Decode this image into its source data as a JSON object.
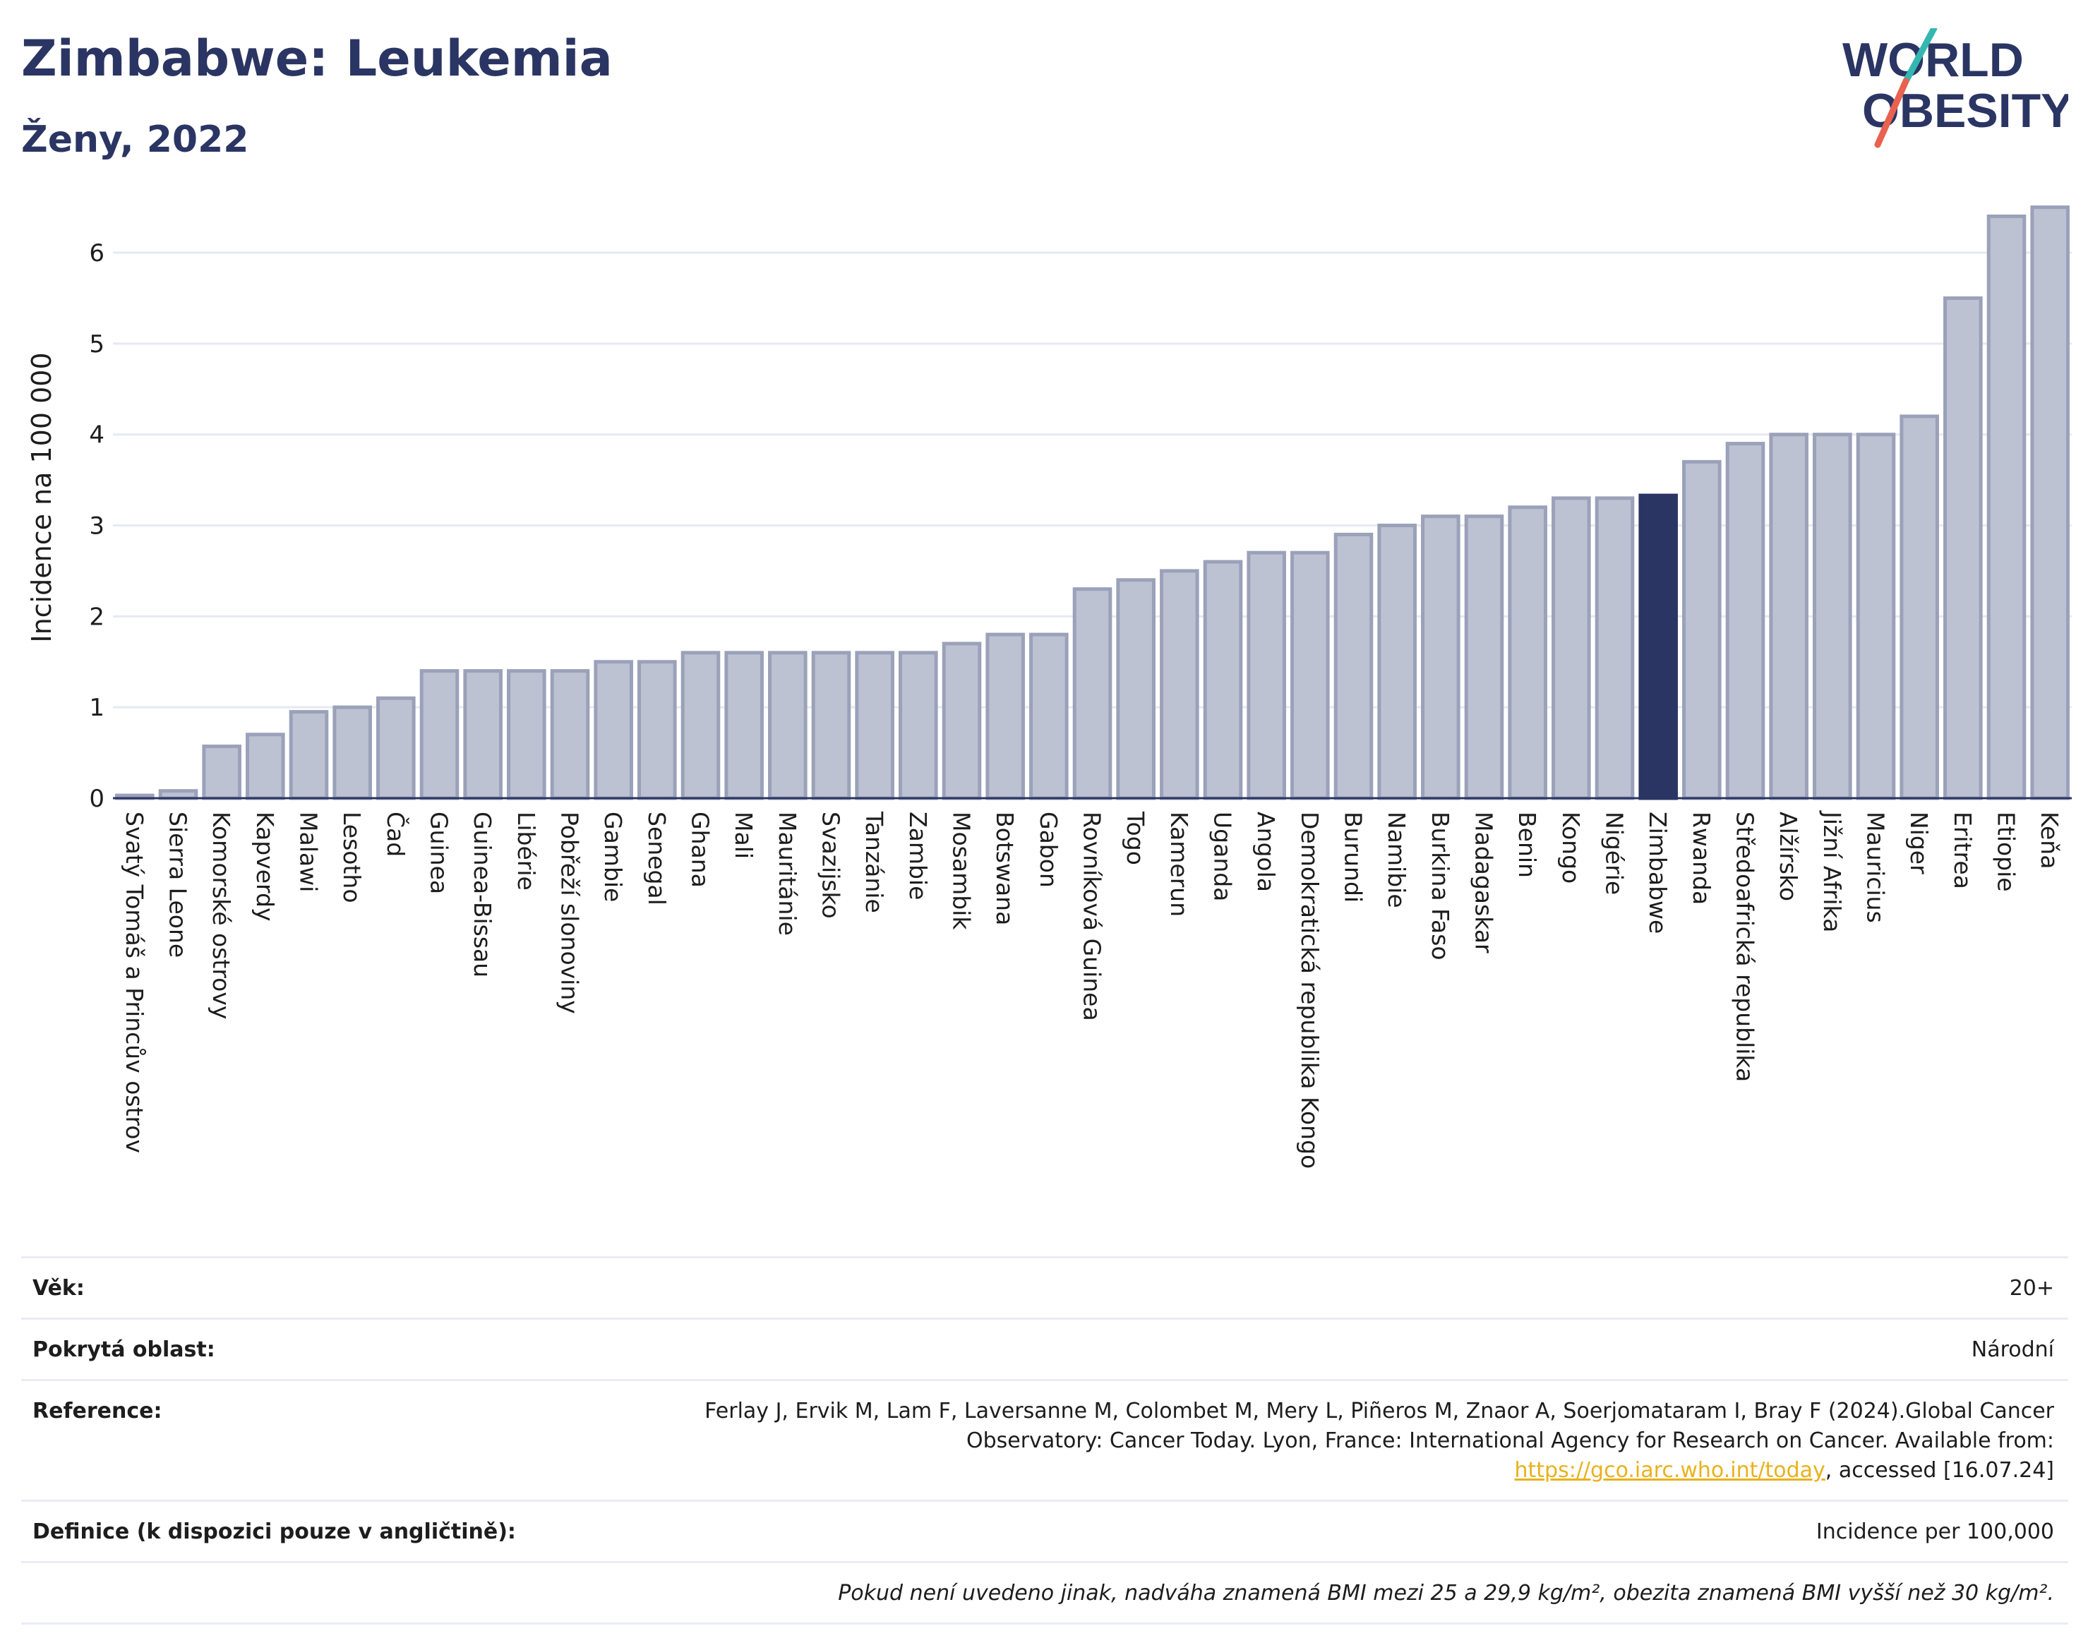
{
  "header": {
    "title": "Zimbabwe: Leukemia",
    "subtitle": "Ženy, 2022"
  },
  "logo": {
    "line1": "WORLD",
    "line2": "OBESITY",
    "colors": {
      "navy": "#2a3563",
      "teal": "#34b7b0",
      "coral": "#e8624f"
    }
  },
  "chart_data": {
    "type": "bar",
    "ylabel": "Incidence na 100 000",
    "ylim": [
      0,
      6.8
    ],
    "yticks": [
      0,
      1,
      2,
      3,
      4,
      5,
      6
    ],
    "grid": true,
    "highlight": "Zimbabwe",
    "colors": {
      "bar": "#bdc2d3",
      "bar_edge": "#9aa1b9",
      "highlight": "#2a3563"
    },
    "categories": [
      "Svatý Tomáš a Princův ostrov",
      "Sierra Leone",
      "Komorské ostrovy",
      "Kapverdy",
      "Malawi",
      "Lesotho",
      "Čad",
      "Guinea",
      "Guinea-Bissau",
      "Libérie",
      "Pobřeží slonoviny",
      "Gambie",
      "Senegal",
      "Ghana",
      "Mali",
      "Mauritánie",
      "Svazijsko",
      "Tanzánie",
      "Zambie",
      "Mosambik",
      "Botswana",
      "Gabon",
      "Rovníková Guinea",
      "Togo",
      "Kamerun",
      "Uganda",
      "Angola",
      "Demokratická republika Kongo",
      "Burundi",
      "Namibie",
      "Burkina Faso",
      "Madagaskar",
      "Benin",
      "Kongo",
      "Nigérie",
      "Zimbabwe",
      "Rwanda",
      "Středoafrická republika",
      "Alžírsko",
      "Jižní Afrika",
      "Mauricius",
      "Niger",
      "Eritrea",
      "Etiopie",
      "Keňa"
    ],
    "values": [
      0.03,
      0.08,
      0.57,
      0.7,
      0.95,
      1.0,
      1.1,
      1.4,
      1.4,
      1.4,
      1.4,
      1.5,
      1.5,
      1.6,
      1.6,
      1.6,
      1.6,
      1.6,
      1.6,
      1.7,
      1.8,
      1.8,
      2.3,
      2.4,
      2.5,
      2.6,
      2.7,
      2.7,
      2.9,
      3.0,
      3.1,
      3.1,
      3.2,
      3.3,
      3.3,
      3.33,
      3.7,
      3.9,
      4.0,
      4.0,
      4.0,
      4.2,
      5.5,
      6.4,
      6.5
    ]
  },
  "info": {
    "age_label": "Věk:",
    "age_value": "20+",
    "area_label": "Pokrytá oblast:",
    "area_value": "Národní",
    "reference_label": "Reference:",
    "reference_text": "Ferlay J, Ervik M, Lam F, Laversanne M, Colombet M, Mery L, Piñeros M, Znaor A, Soerjomataram I, Bray F (2024).Global Cancer Observatory: Cancer Today. Lyon, France: International Agency for Research on Cancer. Available from:",
    "reference_link": "https://gco.iarc.who.int/today",
    "reference_suffix": ", accessed [16.07.24]",
    "definition_label": "Definice (k dispozici pouze v angličtině):",
    "definition_value": "Incidence per 100,000",
    "note": "Pokud není uvedeno jinak, nadváha znamená BMI mezi 25 a 29,9 kg/m², obezita znamená BMI vyšší než 30 kg/m²."
  }
}
